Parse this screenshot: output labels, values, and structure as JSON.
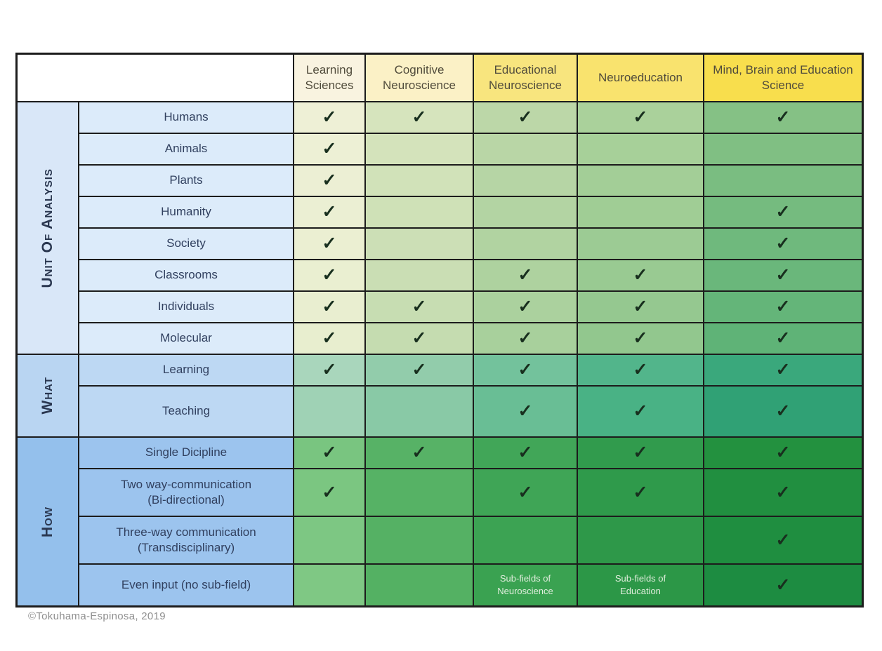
{
  "page": {
    "background": "#ffffff"
  },
  "chart_data": {
    "type": "table",
    "columns": [
      "Learning Sciences",
      "Cognitive Neuroscience",
      "Educational Neuroscience",
      "Neuroeducation",
      "Mind, Brain and Education Science"
    ],
    "row_groups": [
      {
        "group": "Unit Of Analysis",
        "rows": [
          {
            "label": "Humans",
            "values": [
              "✓",
              "✓",
              "✓",
              "✓",
              "✓"
            ]
          },
          {
            "label": "Animals",
            "values": [
              "✓",
              "",
              "",
              "",
              ""
            ]
          },
          {
            "label": "Plants",
            "values": [
              "✓",
              "",
              "",
              "",
              ""
            ]
          },
          {
            "label": "Humanity",
            "values": [
              "✓",
              "",
              "",
              "",
              "✓"
            ]
          },
          {
            "label": "Society",
            "values": [
              "✓",
              "",
              "",
              "",
              "✓"
            ]
          },
          {
            "label": "Classrooms",
            "values": [
              "✓",
              "",
              "✓",
              "✓",
              "✓"
            ]
          },
          {
            "label": "Individuals",
            "values": [
              "✓",
              "✓",
              "✓",
              "✓",
              "✓"
            ]
          },
          {
            "label": "Molecular",
            "values": [
              "✓",
              "✓",
              "✓",
              "✓",
              "✓"
            ]
          }
        ]
      },
      {
        "group": "What",
        "rows": [
          {
            "label": "Learning",
            "values": [
              "✓",
              "✓",
              "✓",
              "✓",
              "✓"
            ]
          },
          {
            "label": "Teaching",
            "values": [
              "",
              "",
              "✓",
              "✓",
              "✓"
            ]
          }
        ]
      },
      {
        "group": "How",
        "rows": [
          {
            "label": "Single Dicipline",
            "values": [
              "✓",
              "✓",
              "✓",
              "✓",
              "✓"
            ]
          },
          {
            "label": "Two way-communication\n(Bi-directional)",
            "values": [
              "✓",
              "",
              "✓",
              "✓",
              "✓"
            ]
          },
          {
            "label": "Three-way communication\n(Transdisciplinary)",
            "values": [
              "",
              "",
              "",
              "",
              "✓"
            ]
          },
          {
            "label": "Even input (no sub-field)",
            "values": [
              "",
              "",
              "Sub-fields of\nNeuroscience",
              "Sub-fields of\nEducation",
              "✓"
            ]
          }
        ]
      }
    ]
  },
  "table": {
    "border_color": "#1c1c1c",
    "check_mark": "✓",
    "check_color": "#182f1e",
    "header": {
      "empty_bg": "#ffffff",
      "text_color": "#514c3c",
      "column_bgs": [
        "#f9f3e0",
        "#fbf1c6",
        "#f8e57e",
        "#f9e36e",
        "#f8de4d"
      ]
    },
    "sections": [
      {
        "group_bg": "#d9e7f8",
        "label_bg": "#dcebfa",
        "cell_gradients": [
          [
            "#eef0d6",
            "#e8eecf"
          ],
          [
            "#d6e4bd",
            "#c5dcb0"
          ],
          [
            "#bcd7a8",
            "#a8d09c"
          ],
          [
            "#aad19b",
            "#92c78e"
          ],
          [
            "#85c185",
            "#5fb377"
          ]
        ]
      },
      {
        "group_bg": "#b9d5f2",
        "label_bg": "#bdd8f3",
        "cell_gradients": [
          [
            "#a9d6bc",
            "#9fd2b5"
          ],
          [
            "#92ccab",
            "#89c9a6"
          ],
          [
            "#73c29c",
            "#69be95"
          ],
          [
            "#52b58b",
            "#49b285"
          ],
          [
            "#3aa87c",
            "#30a175"
          ]
        ]
      },
      {
        "group_bg": "#94c0ec",
        "label_bg": "#9cc4ee",
        "cell_gradients": [
          [
            "#79c580",
            "#7fc884"
          ],
          [
            "#57b266",
            "#54b163"
          ],
          [
            "#41a658",
            "#3aa251"
          ],
          [
            "#319b4d",
            "#2c9747"
          ],
          [
            "#23913f",
            "#1d8c41"
          ]
        ]
      }
    ]
  },
  "footer": {
    "copyright": "©Tokuhama-Espinosa, 2019"
  }
}
